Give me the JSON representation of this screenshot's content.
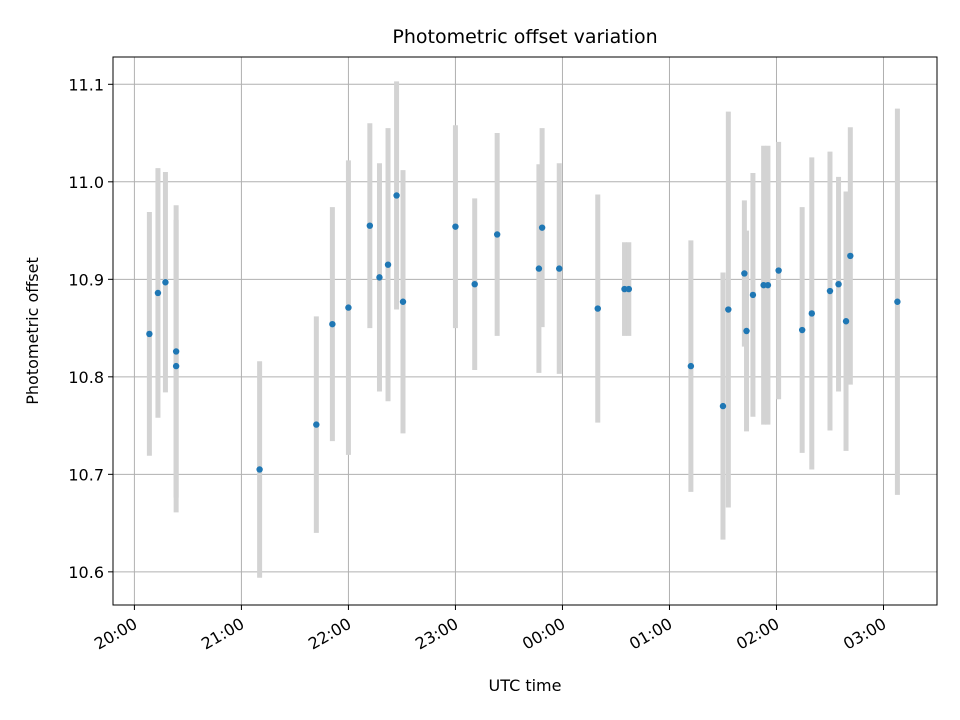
{
  "chart_data": {
    "type": "scatter",
    "title": "Photometric offset variation",
    "xlabel": "UTC time",
    "ylabel": "Photometric offset",
    "x_unit": "hours",
    "xlim": [
      -0.2,
      7.5
    ],
    "ylim": [
      10.566,
      11.128
    ],
    "grid": true,
    "xticks": [
      {
        "value": 0,
        "label": "20:00"
      },
      {
        "value": 1,
        "label": "21:00"
      },
      {
        "value": 2,
        "label": "22:00"
      },
      {
        "value": 3,
        "label": "23:00"
      },
      {
        "value": 4,
        "label": "00:00"
      },
      {
        "value": 5,
        "label": "01:00"
      },
      {
        "value": 6,
        "label": "02:00"
      },
      {
        "value": 7,
        "label": "03:00"
      }
    ],
    "yticks": [
      {
        "value": 10.6,
        "label": "10.6"
      },
      {
        "value": 10.7,
        "label": "10.7"
      },
      {
        "value": 10.8,
        "label": "10.8"
      },
      {
        "value": 10.9,
        "label": "10.9"
      },
      {
        "value": 11.0,
        "label": "11.0"
      },
      {
        "value": 11.1,
        "label": "11.1"
      }
    ],
    "point_color": "#1f77b4",
    "errorbar_color": "#d3d3d3",
    "points": [
      {
        "x": 0.14,
        "y": 10.844,
        "err": 0.125
      },
      {
        "x": 0.22,
        "y": 10.886,
        "err": 0.128
      },
      {
        "x": 0.29,
        "y": 10.897,
        "err": 0.113
      },
      {
        "x": 0.39,
        "y": 10.826,
        "err": 0.15
      },
      {
        "x": 0.39,
        "y": 10.811,
        "err": 0.15
      },
      {
        "x": 1.17,
        "y": 10.705,
        "err": 0.111
      },
      {
        "x": 1.7,
        "y": 10.751,
        "err": 0.111
      },
      {
        "x": 1.85,
        "y": 10.854,
        "err": 0.12
      },
      {
        "x": 2.0,
        "y": 10.871,
        "err": 0.151
      },
      {
        "x": 2.2,
        "y": 10.955,
        "err": 0.105
      },
      {
        "x": 2.29,
        "y": 10.902,
        "err": 0.117
      },
      {
        "x": 2.37,
        "y": 10.915,
        "err": 0.14
      },
      {
        "x": 2.45,
        "y": 10.986,
        "err": 0.117
      },
      {
        "x": 2.51,
        "y": 10.877,
        "err": 0.135
      },
      {
        "x": 3.0,
        "y": 10.954,
        "err": 0.104
      },
      {
        "x": 3.18,
        "y": 10.895,
        "err": 0.088
      },
      {
        "x": 3.39,
        "y": 10.946,
        "err": 0.104
      },
      {
        "x": 3.78,
        "y": 10.911,
        "err": 0.107
      },
      {
        "x": 3.81,
        "y": 10.953,
        "err": 0.102
      },
      {
        "x": 3.97,
        "y": 10.911,
        "err": 0.108
      },
      {
        "x": 4.33,
        "y": 10.87,
        "err": 0.117
      },
      {
        "x": 4.58,
        "y": 10.89,
        "err": 0.048
      },
      {
        "x": 4.62,
        "y": 10.89,
        "err": 0.048
      },
      {
        "x": 5.2,
        "y": 10.811,
        "err": 0.129
      },
      {
        "x": 5.5,
        "y": 10.77,
        "err": 0.137
      },
      {
        "x": 5.55,
        "y": 10.869,
        "err": 0.203
      },
      {
        "x": 5.7,
        "y": 10.906,
        "err": 0.075
      },
      {
        "x": 5.72,
        "y": 10.847,
        "err": 0.103
      },
      {
        "x": 5.78,
        "y": 10.884,
        "err": 0.125
      },
      {
        "x": 5.88,
        "y": 10.894,
        "err": 0.143
      },
      {
        "x": 5.92,
        "y": 10.894,
        "err": 0.143
      },
      {
        "x": 6.02,
        "y": 10.909,
        "err": 0.132
      },
      {
        "x": 6.24,
        "y": 10.848,
        "err": 0.126
      },
      {
        "x": 6.33,
        "y": 10.865,
        "err": 0.16
      },
      {
        "x": 6.5,
        "y": 10.888,
        "err": 0.143
      },
      {
        "x": 6.58,
        "y": 10.895,
        "err": 0.11
      },
      {
        "x": 6.65,
        "y": 10.857,
        "err": 0.133
      },
      {
        "x": 6.69,
        "y": 10.924,
        "err": 0.132
      },
      {
        "x": 7.13,
        "y": 10.877,
        "err": 0.198
      }
    ]
  }
}
